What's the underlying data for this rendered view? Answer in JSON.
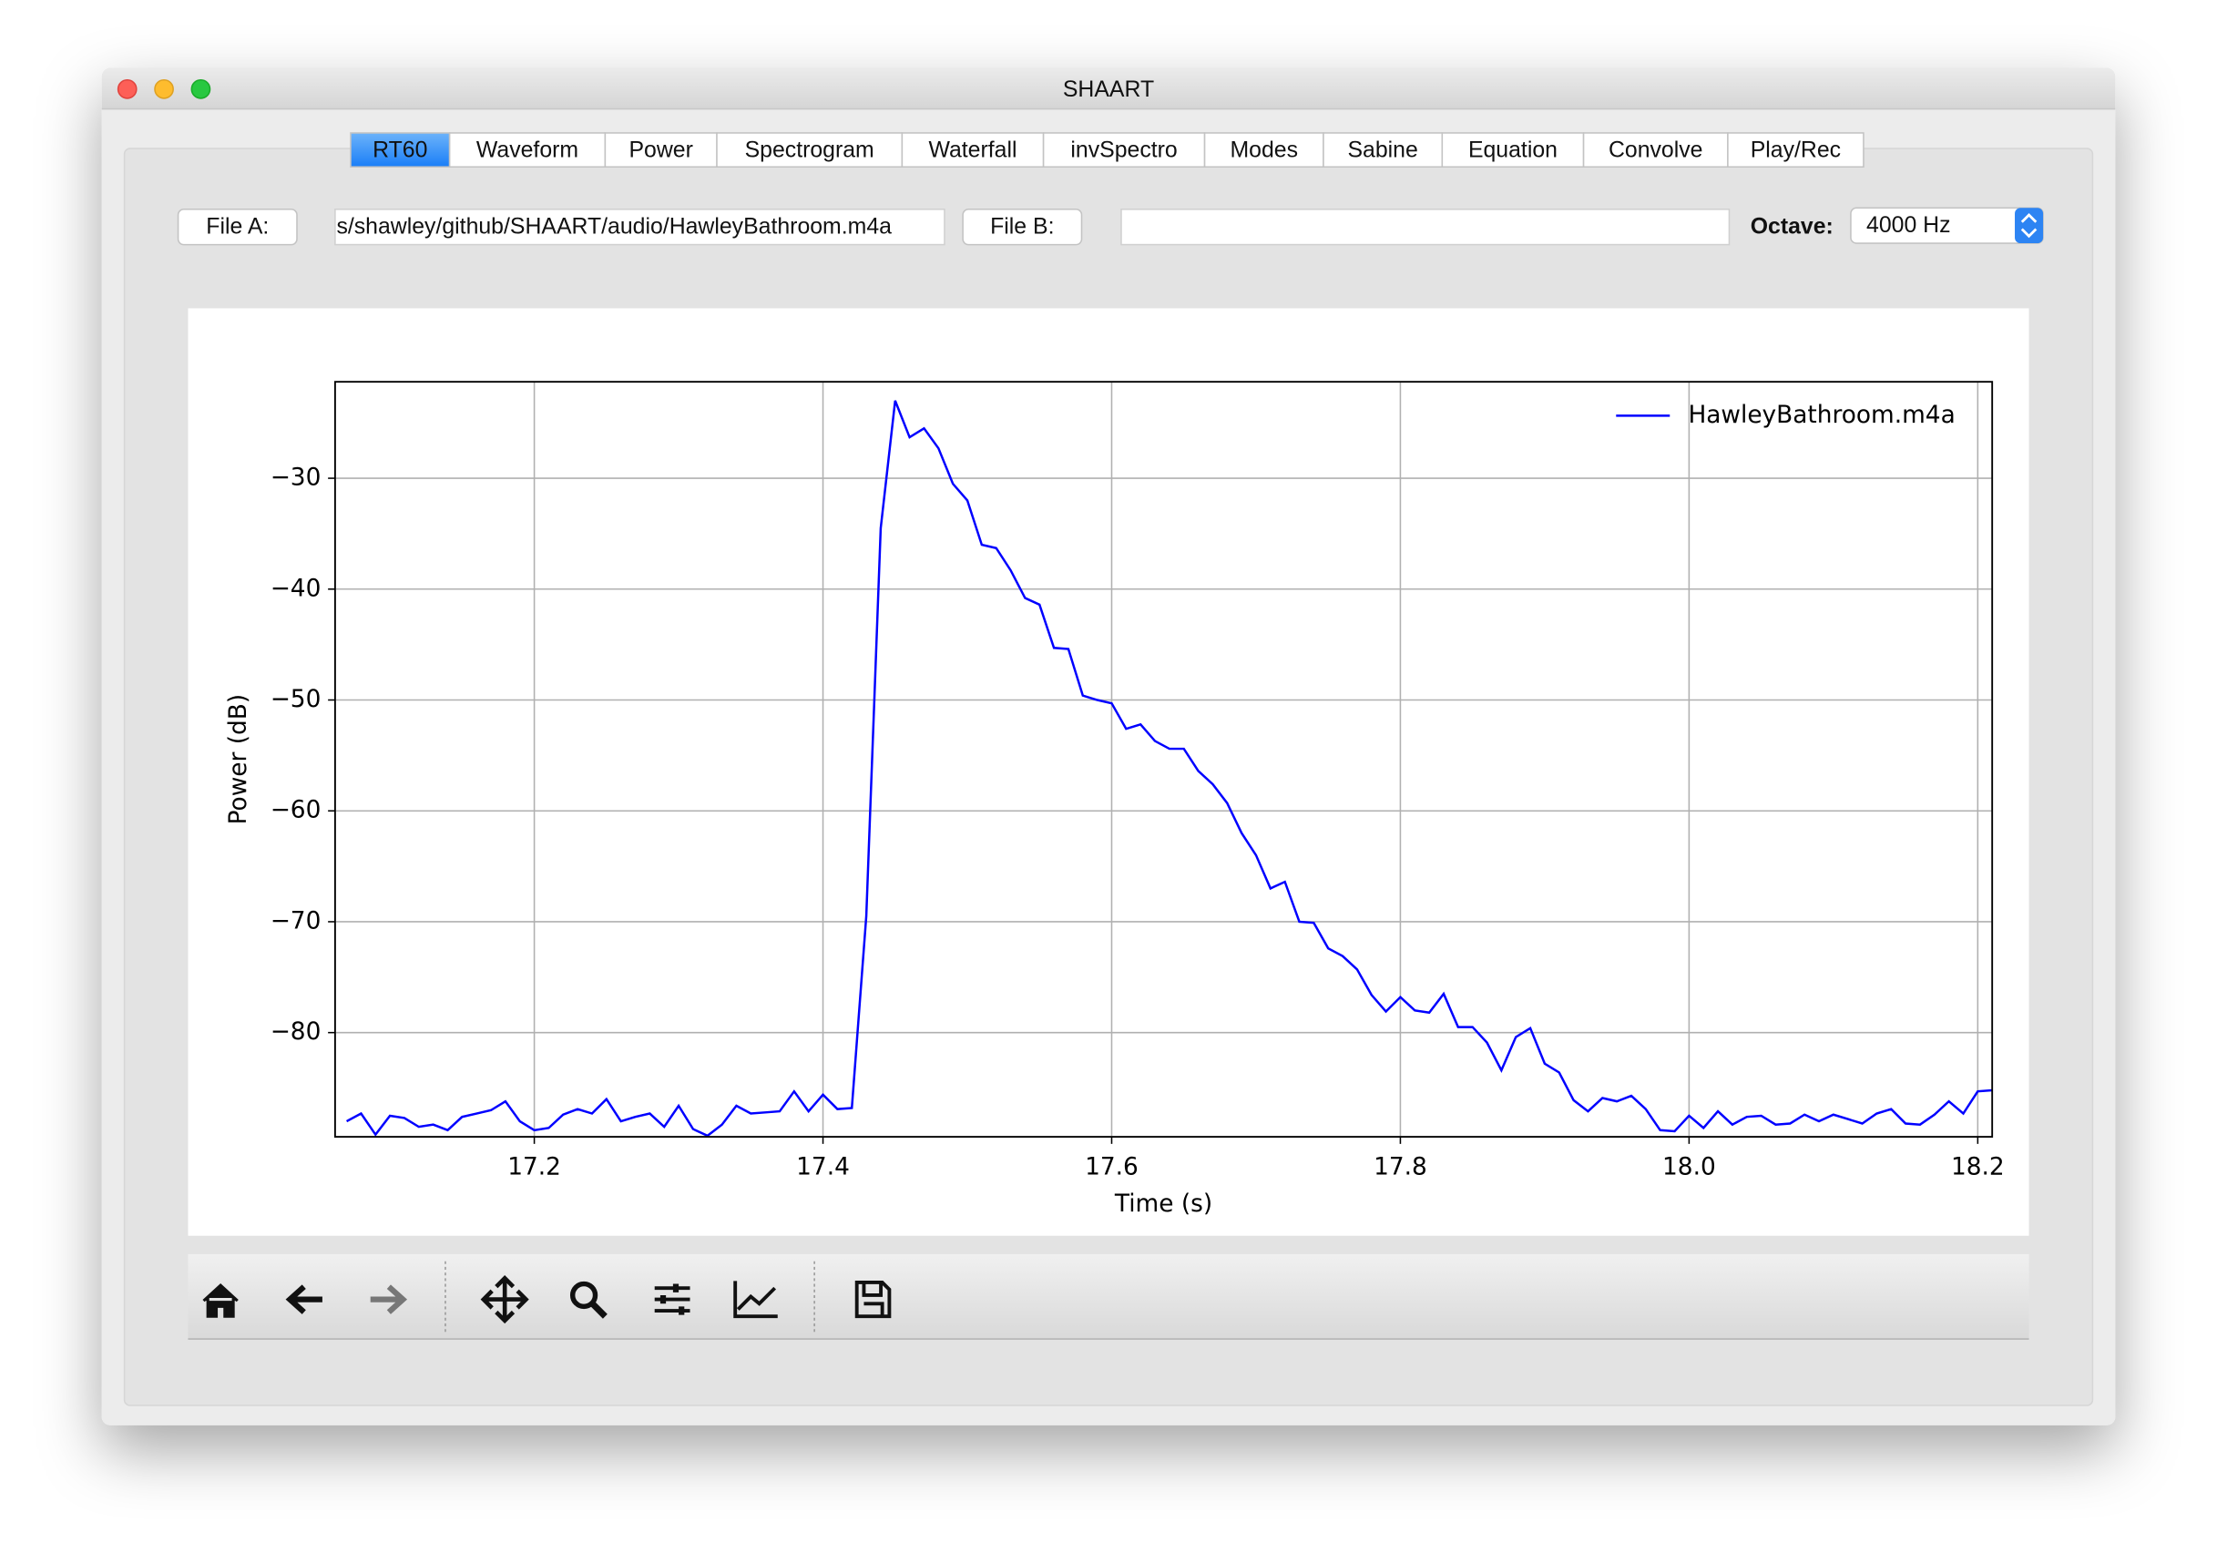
{
  "window_title": "SHAART",
  "tabs": [
    "RT60",
    "Waveform",
    "Power",
    "Spectrogram",
    "Waterfall",
    "invSpectro",
    "Modes",
    "Sabine",
    "Equation",
    "Convolve",
    "Play/Rec"
  ],
  "file_a_button": "File A:",
  "file_a_path": "s/shawley/github/SHAART/audio/HawleyBathroom.m4a",
  "file_b_button": "File B:",
  "octave_label": "Octave:",
  "octave_value": "4000 Hz",
  "chart_data": {
    "type": "line",
    "xlabel": "Time (s)",
    "ylabel": "Power (dB)",
    "x": [
      17.07,
      17.08,
      17.09,
      17.1,
      17.11,
      17.12,
      17.13,
      17.14,
      17.15,
      17.16,
      17.17,
      17.18,
      17.19,
      17.2,
      17.21,
      17.22,
      17.23,
      17.24,
      17.25,
      17.26,
      17.27,
      17.28,
      17.29,
      17.3,
      17.31,
      17.32,
      17.33,
      17.34,
      17.35,
      17.36,
      17.37,
      17.38,
      17.39,
      17.4,
      17.41,
      17.42,
      17.43,
      17.44,
      17.45,
      17.46,
      17.47,
      17.48,
      17.49,
      17.5,
      17.51,
      17.52,
      17.53,
      17.54,
      17.55,
      17.56,
      17.57,
      17.58,
      17.59,
      17.6,
      17.61,
      17.62,
      17.63,
      17.64,
      17.65,
      17.66,
      17.67,
      17.68,
      17.69,
      17.7,
      17.71,
      17.72,
      17.73,
      17.74,
      17.75,
      17.76,
      17.77,
      17.78,
      17.79,
      17.8,
      17.81,
      17.82,
      17.83,
      17.84,
      17.85,
      17.86,
      17.87,
      17.88,
      17.89,
      17.9,
      17.91,
      17.92,
      17.93,
      17.94,
      17.95,
      17.96,
      17.97,
      17.98,
      17.99,
      18.0,
      18.01,
      18.02,
      18.03,
      18.04,
      18.05,
      18.06,
      18.07,
      18.08,
      18.09,
      18.1,
      18.11,
      18.12,
      18.13,
      18.14,
      18.15,
      18.16,
      18.17,
      18.18,
      18.19,
      18.2,
      18.21
    ],
    "series": [
      {
        "name": "HawleyBathroom.m4a",
        "color": "#0000ff",
        "values": [
          -88,
          -87.3,
          -89.2,
          -87.5,
          -87.7,
          -88.5,
          -88.3,
          -88.8,
          -87.6,
          -87.3,
          -87,
          -86.2,
          -88,
          -88.8,
          -88.6,
          -87.4,
          -86.9,
          -87.3,
          -86,
          -88,
          -87.6,
          -87.3,
          -88.5,
          -86.6,
          -88.7,
          -89.3,
          -88.3,
          -86.6,
          -87.3,
          -87.2,
          -87.1,
          -85.3,
          -87.1,
          -85.6,
          -86.9,
          -86.8,
          -69.5,
          -34.5,
          -23,
          -26.3,
          -25.5,
          -27.3,
          -30.5,
          -32,
          -36,
          -36.3,
          -38.3,
          -40.8,
          -41.4,
          -45.3,
          -45.4,
          -49.6,
          -50,
          -50.3,
          -52.6,
          -52.2,
          -53.7,
          -54.4,
          -54.4,
          -56.4,
          -57.6,
          -59.3,
          -62,
          -64,
          -67,
          -66.4,
          -70,
          -70.1,
          -72.4,
          -73.1,
          -74.3,
          -76.6,
          -78.1,
          -76.8,
          -78,
          -78.2,
          -76.5,
          -79.5,
          -79.5,
          -80.9,
          -83.4,
          -80.4,
          -79.6,
          -82.8,
          -83.6,
          -86.1,
          -87.1,
          -85.9,
          -86.2,
          -85.7,
          -86.9,
          -88.8,
          -88.9,
          -87.5,
          -88.6,
          -87.1,
          -88.3,
          -87.6,
          -87.5,
          -88.3,
          -88.2,
          -87.4,
          -88,
          -87.4,
          -87.8,
          -88.2,
          -87.3,
          -86.9,
          -88.2,
          -88.3,
          -87.4,
          -86.2,
          -87.3,
          -85.3,
          -85.2
        ]
      }
    ],
    "xlim": [
      17.062,
      18.21
    ],
    "ylim": [
      -89.4,
      -21.3
    ],
    "xticks": [
      17.2,
      17.4,
      17.6,
      17.8,
      {
        "value": 18.0,
        "label": "18.0"
      },
      18.2
    ],
    "yticks": [
      {
        "value": -80,
        "label": "−80"
      },
      {
        "value": -70,
        "label": "−70"
      },
      {
        "value": -60,
        "label": "−60"
      },
      {
        "value": -50,
        "label": "−50"
      },
      {
        "value": -40,
        "label": "−40"
      },
      {
        "value": -30,
        "label": "−30"
      }
    ],
    "grid": true,
    "legend": "upper right"
  }
}
